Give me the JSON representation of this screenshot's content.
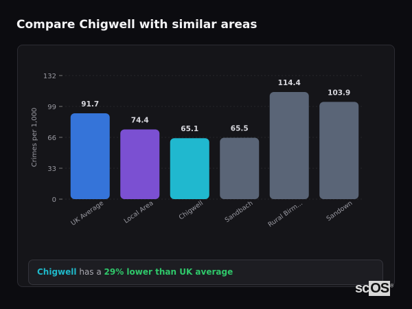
{
  "header": {
    "title": "Compare Chigwell with similar areas"
  },
  "chart_data": {
    "type": "bar",
    "categories": [
      "UK Average",
      "Local Area",
      "Chigwell",
      "Sandbach",
      "Rural Birm...",
      "Sandown"
    ],
    "values": [
      91.7,
      74.4,
      65.1,
      65.5,
      114.4,
      103.9
    ],
    "value_labels": [
      "91.7",
      "74.4",
      "65.1",
      "65.5",
      "114.4",
      "103.9"
    ],
    "colors": [
      "#3574d9",
      "#7b50d2",
      "#20b8cf",
      "#5a6577",
      "#5a6577",
      "#5a6577"
    ],
    "ylabel": "Crimes per 1,000",
    "xlabel": "",
    "ylim": [
      0,
      132
    ],
    "yticks": [
      0,
      33,
      66,
      99,
      132
    ],
    "grid": true
  },
  "summary": {
    "area": "Chigwell",
    "connector": " has a ",
    "highlight": "29% lower than UK average"
  },
  "logo": {
    "text": "scOS"
  }
}
